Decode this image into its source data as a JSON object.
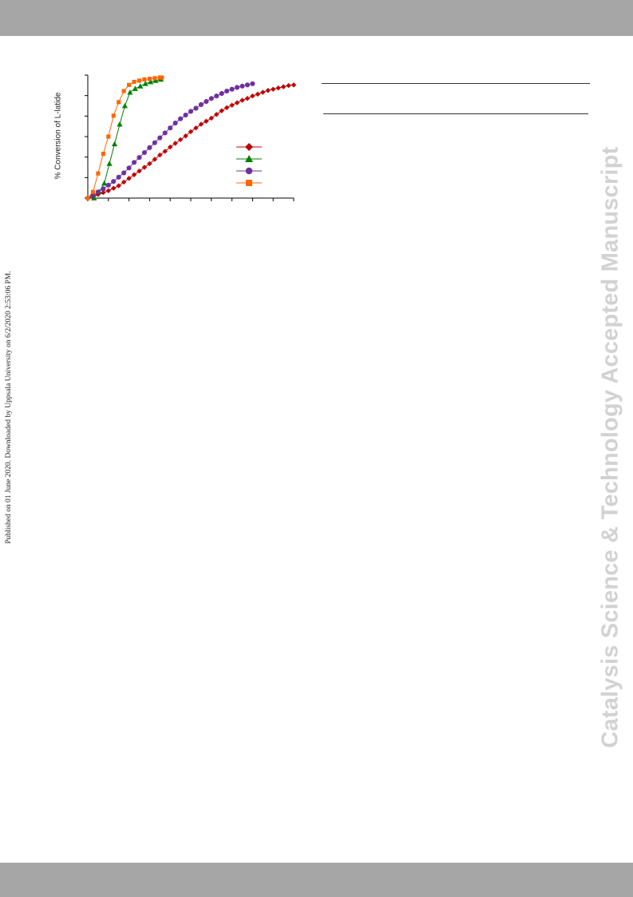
{
  "page": {
    "side_note": "Published on 01 June 2020. Downloaded by Uppsala University on 6/2/2020 2:53:06 PM.",
    "watermark": "Catalysis Science & Technology Accepted Manuscript"
  },
  "colors": {
    "band": "#a6a6a6",
    "series_red": "#c00000",
    "series_green": "#008000",
    "series_purple": "#7030a0",
    "series_orange": "#ff6600"
  },
  "chart_data": {
    "type": "line",
    "ylabel": "% Conversion of L-latide",
    "xlabel": "",
    "xlim": [
      0,
      100
    ],
    "ylim": [
      0,
      100
    ],
    "x_ticks": 10,
    "y_ticks": 6,
    "grid": false,
    "legend": "right-middle",
    "series": [
      {
        "marker": "diamond",
        "color": "#c00000",
        "x": [
          0,
          2.5,
          5,
          7.5,
          10,
          12.5,
          15,
          17.5,
          20,
          22.5,
          25,
          27.5,
          30,
          32.5,
          35,
          37.5,
          40,
          42.5,
          45,
          47.5,
          50,
          52.5,
          55,
          57.5,
          60,
          62.5,
          65,
          67.5,
          70,
          72.5,
          75,
          77.5,
          80,
          82.5,
          85,
          87.5,
          90,
          92.5,
          95,
          97.5,
          100
        ],
        "y": [
          0,
          1.5,
          3,
          4.5,
          6,
          8,
          10,
          13,
          16,
          19,
          22,
          25,
          28,
          31.5,
          35,
          38,
          41.5,
          44.5,
          47.5,
          50.5,
          54,
          57,
          60,
          62.5,
          65,
          68,
          71,
          73.5,
          75.5,
          77.5,
          79.5,
          81,
          83,
          84.5,
          86,
          87.5,
          88.5,
          89.5,
          90.5,
          91.5,
          92
        ]
      },
      {
        "marker": "triangle",
        "color": "#008000",
        "x": [
          3,
          5.5,
          8,
          10.5,
          13,
          15.5,
          18,
          20.5,
          23,
          25.5,
          28,
          30.5,
          33,
          35.5
        ],
        "y": [
          0,
          5,
          12,
          28,
          44,
          60,
          75,
          86,
          89,
          91,
          93,
          94.5,
          95.5,
          96.5
        ]
      },
      {
        "marker": "circle",
        "color": "#7030a0",
        "x": [
          0,
          2.5,
          5,
          7.5,
          10,
          12.5,
          15,
          17.5,
          20,
          22.5,
          25,
          27.5,
          30,
          32.5,
          35,
          37.5,
          40,
          42.5,
          45,
          47.5,
          50,
          52.5,
          55,
          57.5,
          60,
          62.5,
          65,
          67.5,
          70,
          72.5,
          75,
          77.5,
          80
        ],
        "y": [
          0,
          2.5,
          5,
          7.5,
          10.5,
          13.5,
          17,
          20.5,
          24.5,
          29,
          33,
          37,
          41,
          45,
          49,
          53,
          57,
          61,
          64.5,
          67.5,
          70.5,
          73,
          76,
          78.5,
          81,
          83,
          85,
          87,
          88.5,
          90,
          91,
          92,
          93
        ]
      },
      {
        "marker": "square",
        "color": "#ff6600",
        "x": [
          0,
          2.5,
          5,
          7.5,
          10,
          12.5,
          15,
          17.5,
          20,
          22.5,
          25,
          27.5,
          30,
          32.5,
          35,
          36
        ],
        "y": [
          0,
          5,
          20,
          36,
          50,
          67,
          78,
          87,
          92,
          94.5,
          95.5,
          96.5,
          97,
          97.5,
          98,
          98
        ]
      }
    ]
  }
}
